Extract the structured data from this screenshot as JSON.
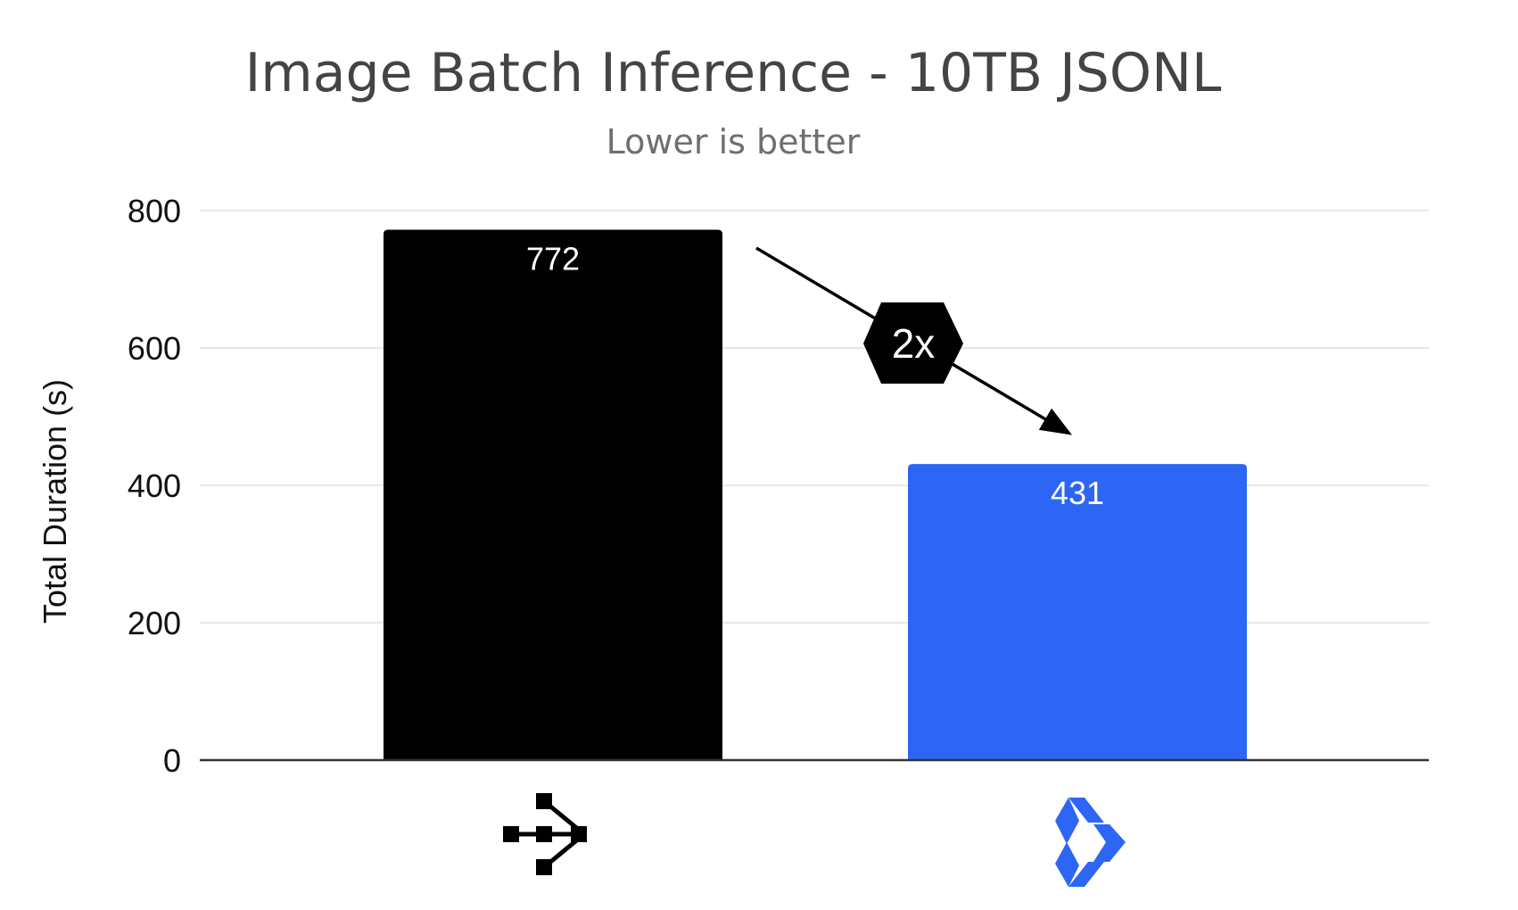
{
  "chart_data": {
    "type": "bar",
    "title": "Image Batch Inference - 10TB JSONL",
    "subtitle": "Lower is better",
    "ylabel": "Total Duration (s)",
    "ylim": [
      0,
      800
    ],
    "yticks": [
      0,
      200,
      400,
      600,
      800
    ],
    "grid": true,
    "categories": [
      "workflow-icon",
      "cube-logo-icon"
    ],
    "values": [
      772,
      431
    ],
    "data_labels": [
      "772",
      "431"
    ],
    "bar_colors": [
      "#000000",
      "#2d66f5"
    ],
    "annotation": {
      "text": "2x"
    }
  },
  "colors": {
    "grid": "#e6e6e6",
    "axis": "#333333",
    "bar_black": "#000000",
    "bar_blue": "#2d66f5"
  }
}
